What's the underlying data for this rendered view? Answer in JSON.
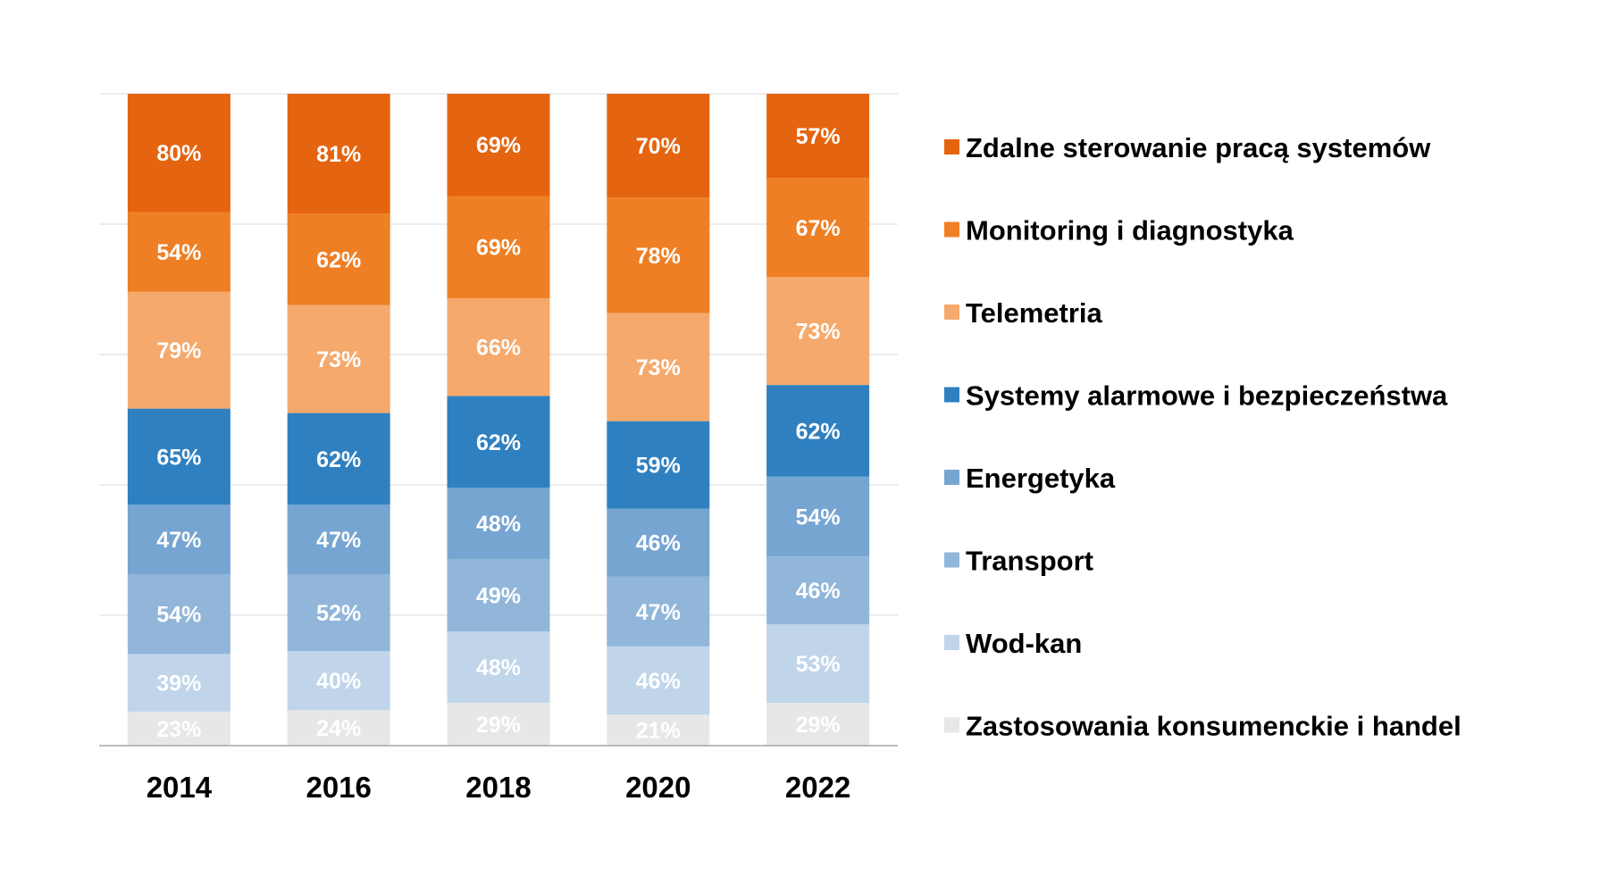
{
  "chart_data": {
    "type": "bar",
    "stacked": true,
    "categories": [
      "2014",
      "2016",
      "2018",
      "2020",
      "2022"
    ],
    "series": [
      {
        "name": "Zastosowania konsumenckie i handel",
        "color": "#e7e7e7",
        "values": [
          23,
          24,
          29,
          21,
          29
        ]
      },
      {
        "name": "Wod-kan",
        "color": "#c0d5ea",
        "values": [
          39,
          40,
          48,
          46,
          53
        ]
      },
      {
        "name": "Transport",
        "color": "#91b6da",
        "values": [
          54,
          52,
          49,
          47,
          46
        ]
      },
      {
        "name": "Energetyka",
        "color": "#76a5d2",
        "values": [
          47,
          47,
          48,
          46,
          54
        ]
      },
      {
        "name": "Systemy alarmowe i bezpieczeństwa",
        "color": "#2f80c0",
        "values": [
          65,
          62,
          62,
          59,
          62
        ]
      },
      {
        "name": "Telemetria",
        "color": "#f5a96c",
        "values": [
          79,
          73,
          66,
          73,
          73
        ]
      },
      {
        "name": "Monitoring i diagnostyka",
        "color": "#ef7f24",
        "values": [
          54,
          62,
          69,
          78,
          67
        ]
      },
      {
        "name": "Zdalne sterowanie pracą systemów",
        "color": "#e5640f",
        "values": [
          80,
          81,
          69,
          70,
          57
        ]
      }
    ],
    "value_suffix": "%",
    "gridlines": true,
    "legend_position": "right",
    "legend_order": "top-down reverse of stack"
  }
}
